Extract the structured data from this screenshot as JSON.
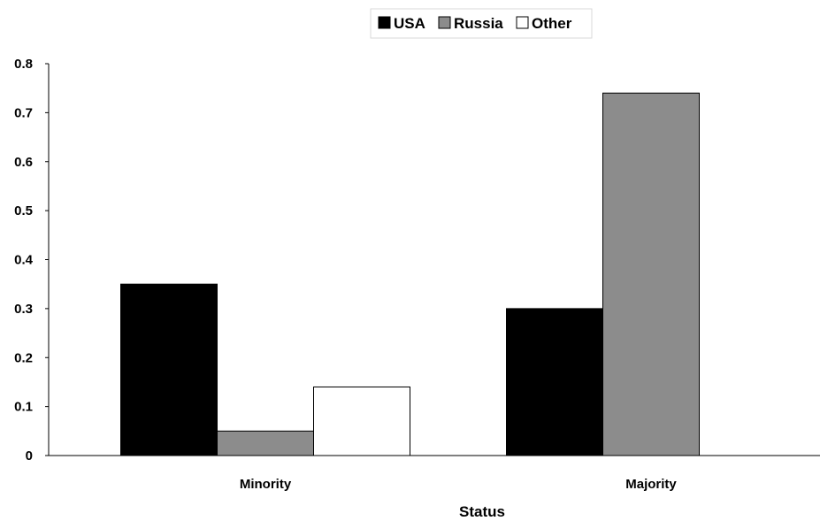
{
  "chart_data": {
    "type": "bar",
    "categories": [
      "Minority",
      "Majority"
    ],
    "series": [
      {
        "name": "USA",
        "values": [
          0.35,
          0.3
        ],
        "color": "#000000"
      },
      {
        "name": "Russia",
        "values": [
          0.05,
          0.74
        ],
        "color": "#8c8c8c"
      },
      {
        "name": "Other",
        "values": [
          0.14,
          0.0
        ],
        "color": "#ffffff"
      }
    ],
    "title": "",
    "xlabel": "Status",
    "ylabel": "",
    "ylim": [
      0,
      0.8
    ],
    "yticks": [
      "0",
      "0.1",
      "0.2",
      "0.3",
      "0.4",
      "0.5",
      "0.6",
      "0.7",
      "0.8"
    ],
    "grid": false,
    "legend_position": "top-center"
  }
}
